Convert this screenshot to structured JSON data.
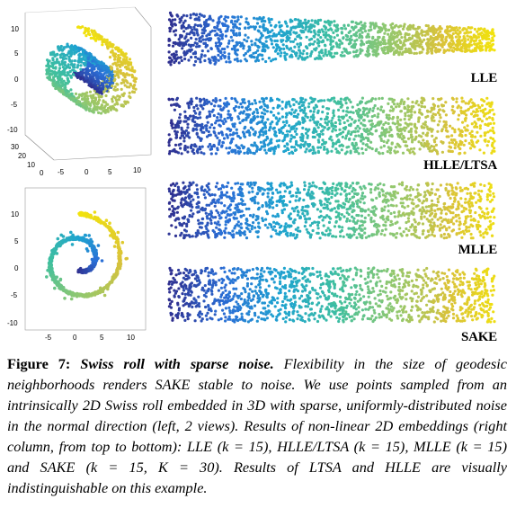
{
  "figure": {
    "number": "Figure 7:",
    "title": "Swiss roll with sparse noise.",
    "body": "Flexibility in the size of geodesic neighborhoods renders SAKE stable to noise. We use points sampled from an intrinsically 2D Swiss roll embedded in 3D with sparse, uniformly-distributed noise in the normal direction (left, 2 views). Results of non-linear 2D embeddings (right column, from top to bottom): LLE (k = 15), HLLE/LTSA (k = 15), MLLE (k = 15) and SAKE (k = 15, K = 30). Results of LTSA and HLLE are visually indistinguishable on this example."
  },
  "views": {
    "view3d": {
      "z_ticks": [
        "10",
        "5",
        "0",
        "-5",
        "-10"
      ],
      "y_ticks": [
        "30",
        "20",
        "10",
        "0"
      ],
      "x_ticks": [
        "-5",
        "0",
        "5",
        "10"
      ]
    },
    "view2d": {
      "y_ticks": [
        "10",
        "5",
        "0",
        "-5",
        "-10"
      ],
      "x_ticks": [
        "-5",
        "0",
        "5",
        "10"
      ]
    }
  },
  "embeddings": [
    {
      "label": "LLE"
    },
    {
      "label": "HLLE/LTSA"
    },
    {
      "label": "MLLE"
    },
    {
      "label": "SAKE"
    }
  ],
  "colormap": [
    "#2f2f8f",
    "#2a6fd6",
    "#1ea3d0",
    "#3ebfa0",
    "#90c870",
    "#d9c23a",
    "#f2e30c"
  ]
}
